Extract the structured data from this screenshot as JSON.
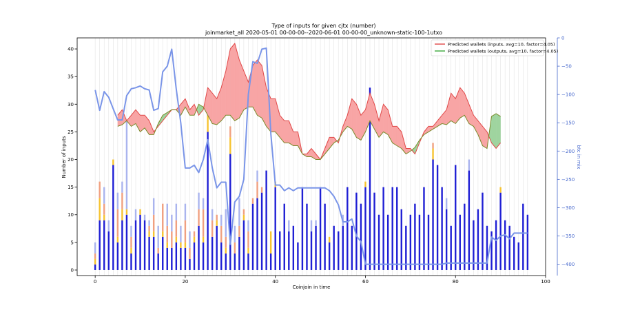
{
  "chart_data": {
    "type": "bar",
    "title": "Type of inputs for given cjtx (number)",
    "subtitle": "joinmarket_all 2020-05-01 00-00-00--2020-06-01 00-00-00_unknown-static-100-1utxo",
    "xlabel": "Coinjoin in time",
    "ylabel": "Number of inputs",
    "y2label": "btc in mix",
    "xlim": [
      -4,
      100
    ],
    "ylim": [
      -1,
      42
    ],
    "y2lim": [
      -420,
      0
    ],
    "xticks": [
      "0",
      "20",
      "40",
      "60",
      "80",
      "100"
    ],
    "yticks": [
      "0",
      "5",
      "10",
      "15",
      "20",
      "25",
      "30",
      "35",
      "40"
    ],
    "y2ticks": [
      "0",
      "−50",
      "−100",
      "−150",
      "−200",
      "−250",
      "−300",
      "−350",
      "−400"
    ],
    "grid": "vertical lines at each coinjoin",
    "legend_position": "top-right",
    "colors": {
      "base_bar": "#1f1fd4",
      "fresh_bar": "#f6c330",
      "remix_bar": "#f0a080",
      "light_bar": "#aab4ee",
      "inputs_line": "#e04848",
      "inputs_fill": "#f8a5a5",
      "outputs_line": "#3aa83a",
      "outputs_fill": "#9fd49f",
      "btc_line": "#7a95e8",
      "y2_axis": "#4466cc"
    },
    "series": [
      {
        "name": "Predicted wallets (inputs, avg=10, factor=4.05)",
        "x": [
          5,
          6,
          7,
          8,
          9,
          10,
          11,
          12,
          13,
          14,
          15,
          16,
          17,
          18,
          19,
          20,
          21,
          22,
          23,
          24,
          25,
          26,
          27,
          28,
          29,
          30,
          31,
          32,
          33,
          34,
          35,
          36,
          37,
          38,
          39,
          40,
          41,
          42,
          43,
          44,
          45,
          46,
          47,
          48,
          49,
          50,
          51,
          52,
          53,
          54,
          55,
          56,
          57,
          58,
          59,
          60,
          61,
          62,
          63,
          64,
          65,
          66,
          67,
          68,
          69,
          70,
          71,
          72,
          73,
          74,
          75,
          76,
          77,
          78,
          79,
          80,
          81,
          82,
          83,
          84,
          85,
          86,
          87,
          88,
          89,
          90
        ],
        "values": [
          28,
          29,
          27,
          28,
          29,
          28,
          28,
          27,
          25,
          26,
          27,
          28,
          29,
          29,
          30,
          31,
          29,
          30,
          28,
          29,
          33,
          32,
          31,
          33,
          36,
          40,
          41,
          38,
          36,
          34,
          37,
          38,
          37,
          33,
          31,
          31,
          28,
          27,
          27,
          25,
          25,
          21,
          21,
          22,
          21,
          20,
          22,
          24,
          24,
          23,
          26,
          28,
          31,
          30,
          28,
          29,
          32,
          30,
          27,
          30,
          29,
          26,
          26,
          25,
          22,
          22,
          21,
          23,
          25,
          26,
          26,
          27,
          28,
          29,
          32,
          31,
          33,
          32,
          30,
          28,
          27,
          26,
          25,
          23,
          22,
          23
        ]
      },
      {
        "name": "Predicted wallets (outputs, avg=10, factor=4.05)",
        "x": [
          5,
          6,
          7,
          8,
          9,
          10,
          11,
          12,
          13,
          14,
          15,
          16,
          17,
          18,
          19,
          20,
          21,
          22,
          23,
          24,
          25,
          26,
          27,
          28,
          29,
          30,
          31,
          32,
          33,
          34,
          35,
          36,
          37,
          38,
          39,
          40,
          41,
          42,
          43,
          44,
          45,
          46,
          47,
          48,
          49,
          50,
          51,
          52,
          53,
          54,
          55,
          56,
          57,
          58,
          59,
          60,
          61,
          62,
          63,
          64,
          65,
          66,
          67,
          68,
          69,
          70,
          71,
          72,
          73,
          74,
          75,
          76,
          77,
          78,
          79,
          80,
          81,
          82,
          83,
          84,
          85,
          86,
          87,
          88,
          89,
          90
        ],
        "values": [
          26,
          26.3,
          27,
          26,
          26.5,
          25,
          25.7,
          24.5,
          24.5,
          26.5,
          28,
          28.5,
          29,
          29,
          28,
          29.5,
          28,
          28,
          30,
          29.5,
          28,
          26.5,
          26.3,
          27,
          28,
          28,
          27,
          27.5,
          29,
          29.5,
          29.5,
          28,
          27.5,
          26,
          25,
          25,
          24,
          23,
          23,
          22.5,
          22.5,
          21,
          20.5,
          20.5,
          20,
          20,
          21,
          22,
          23,
          23.5,
          25,
          26,
          25.5,
          24,
          23.5,
          25,
          27,
          25.5,
          24,
          25,
          24.5,
          23,
          22.5,
          22,
          21,
          21.5,
          22.2,
          23.5,
          24.5,
          25,
          25.5,
          26,
          26.5,
          26.3,
          27,
          26.5,
          27.5,
          28,
          26.5,
          26,
          24.5,
          22.5,
          22,
          27.8,
          28.3,
          27.8
        ]
      },
      {
        "name": "btc in mix",
        "x": [
          0,
          1,
          2,
          3,
          4,
          5,
          6,
          7,
          8,
          9,
          10,
          11,
          12,
          13,
          14,
          15,
          16,
          17,
          18,
          19,
          20,
          21,
          22,
          23,
          24,
          25,
          26,
          27,
          28,
          29,
          30,
          31,
          32,
          33,
          34,
          35,
          36,
          37,
          38,
          39,
          40,
          41,
          42,
          43,
          44,
          45,
          46,
          47,
          48,
          49,
          50,
          51,
          52,
          53,
          54,
          55,
          56,
          57,
          58,
          59,
          60,
          61,
          62,
          63,
          64,
          65,
          66,
          67,
          68,
          69,
          70,
          71,
          72,
          73,
          74,
          75,
          76,
          77,
          78,
          79,
          80,
          81,
          82,
          83,
          84,
          85,
          86,
          87,
          88,
          89,
          90,
          91,
          92,
          93,
          94,
          95,
          96
        ],
        "values": [
          -92,
          -128,
          -95,
          -105,
          -125,
          -145,
          -145,
          -102,
          -90,
          -88,
          -85,
          -90,
          -92,
          -128,
          -125,
          -60,
          -50,
          -20,
          -90,
          -150,
          -230,
          -230,
          -225,
          -238,
          -215,
          -180,
          -230,
          -265,
          -255,
          -255,
          -365,
          -290,
          -280,
          -250,
          -100,
          -42,
          -45,
          -20,
          -18,
          -170,
          -260,
          -260,
          -270,
          -265,
          -270,
          -265,
          -265,
          -265,
          -265,
          -265,
          -265,
          -265,
          -270,
          -280,
          -295,
          -325,
          -325,
          -320,
          -350,
          -360,
          -400,
          -400,
          -400,
          -400,
          -400,
          -400,
          -400,
          -400,
          -400,
          -400,
          -400,
          -400,
          -400,
          -400,
          -400,
          -400,
          -400,
          -400,
          -398,
          -398,
          -398,
          -398,
          -398,
          -398,
          -398,
          -398,
          -398,
          -398,
          -352,
          -358,
          -350,
          -348,
          -355,
          -345,
          -345,
          -345,
          -345
        ]
      }
    ],
    "bars": {
      "x": [
        0,
        1,
        2,
        3,
        4,
        5,
        6,
        7,
        8,
        9,
        10,
        11,
        12,
        13,
        14,
        15,
        16,
        17,
        18,
        19,
        20,
        21,
        22,
        23,
        24,
        25,
        26,
        27,
        28,
        29,
        30,
        31,
        32,
        33,
        34,
        35,
        36,
        37,
        38,
        39,
        40,
        41,
        42,
        43,
        44,
        45,
        46,
        47,
        48,
        49,
        50,
        51,
        52,
        53,
        54,
        55,
        56,
        57,
        58,
        59,
        60,
        61,
        62,
        63,
        64,
        65,
        66,
        67,
        68,
        69,
        70,
        71,
        72,
        73,
        74,
        75,
        76,
        77,
        78,
        79,
        80,
        81,
        82,
        83,
        84,
        85,
        86,
        87,
        88,
        89,
        90,
        91,
        92,
        93,
        94,
        95,
        96
      ],
      "base": [
        1,
        9,
        9,
        7,
        19,
        5,
        9,
        10,
        3,
        9,
        10,
        9,
        6,
        6,
        3,
        6,
        4,
        4,
        5,
        4,
        4,
        2,
        5,
        8,
        5,
        25,
        6,
        8,
        5,
        3,
        21,
        3,
        6,
        9,
        3,
        12,
        13,
        14,
        18,
        3,
        15,
        7,
        12,
        7,
        8,
        5,
        15,
        12,
        7,
        8,
        15,
        12,
        5,
        8,
        7,
        8,
        15,
        8,
        14,
        12,
        15,
        33,
        14,
        10,
        15,
        10,
        15,
        15,
        11,
        8,
        10,
        12,
        10,
        15,
        10,
        20,
        19,
        15,
        11,
        8,
        19,
        10,
        12,
        18,
        9,
        11,
        14,
        8,
        7,
        9,
        14,
        9,
        8,
        6,
        5,
        12,
        10
      ],
      "fresh": [
        1,
        4,
        1,
        0,
        1,
        1,
        2,
        1,
        1,
        0,
        1,
        0,
        1,
        1,
        0,
        1,
        1,
        0,
        1,
        1,
        1,
        0,
        1,
        0,
        1,
        3,
        0,
        1,
        0,
        1,
        3,
        0,
        0,
        1,
        1,
        0,
        0,
        0,
        0,
        4,
        1,
        0,
        0,
        0,
        0,
        0,
        0,
        0,
        0,
        0,
        0,
        0,
        1,
        0,
        0,
        0,
        0,
        0,
        0,
        0,
        1,
        0,
        0,
        0,
        0,
        0,
        0,
        0,
        0,
        0,
        0,
        0,
        0,
        0,
        0,
        2,
        0,
        0,
        0,
        0,
        0,
        0,
        0,
        0,
        0,
        0,
        0,
        0,
        0,
        0,
        1,
        0,
        0,
        0,
        0,
        0,
        0
      ],
      "remix": [
        1,
        3,
        2,
        0,
        0,
        5,
        3,
        0,
        2,
        0,
        0,
        0,
        1,
        3,
        1,
        5,
        3,
        3,
        3,
        0,
        4,
        2,
        1,
        3,
        5,
        0,
        3,
        1,
        3,
        2,
        2,
        2,
        2,
        1,
        3,
        1,
        3,
        1,
        0,
        0,
        0,
        0,
        0,
        0,
        0,
        0,
        0,
        0,
        0,
        0,
        0,
        0,
        0,
        0,
        0,
        0,
        0,
        0,
        0,
        0,
        0,
        0,
        0,
        0,
        0,
        0,
        0,
        0,
        0,
        0,
        0,
        0,
        0,
        0,
        0,
        1,
        0,
        0,
        0,
        0,
        0,
        0,
        0,
        0,
        0,
        0,
        0,
        0,
        0,
        0,
        0,
        0,
        0,
        0,
        0,
        0,
        0
      ],
      "light": [
        2,
        0,
        3,
        2,
        0,
        3,
        2,
        16,
        2,
        2,
        0,
        1,
        1,
        3,
        4,
        0,
        4,
        3,
        3,
        3,
        3,
        3,
        0,
        3,
        2,
        4,
        2,
        0,
        2,
        5,
        0,
        3,
        5,
        0,
        2,
        0,
        2,
        0,
        0,
        0,
        0,
        0,
        0,
        2,
        0,
        0,
        0,
        0,
        2,
        1,
        0,
        0,
        0,
        0,
        0,
        2,
        0,
        0,
        0,
        0,
        0,
        0,
        0,
        0,
        0,
        0,
        0,
        0,
        0,
        0,
        0,
        0,
        0,
        0,
        0,
        0,
        0,
        0,
        2,
        0,
        0,
        0,
        0,
        2,
        0,
        0,
        0,
        0,
        0,
        0,
        0,
        0,
        0,
        0,
        0,
        0,
        0
      ]
    }
  }
}
